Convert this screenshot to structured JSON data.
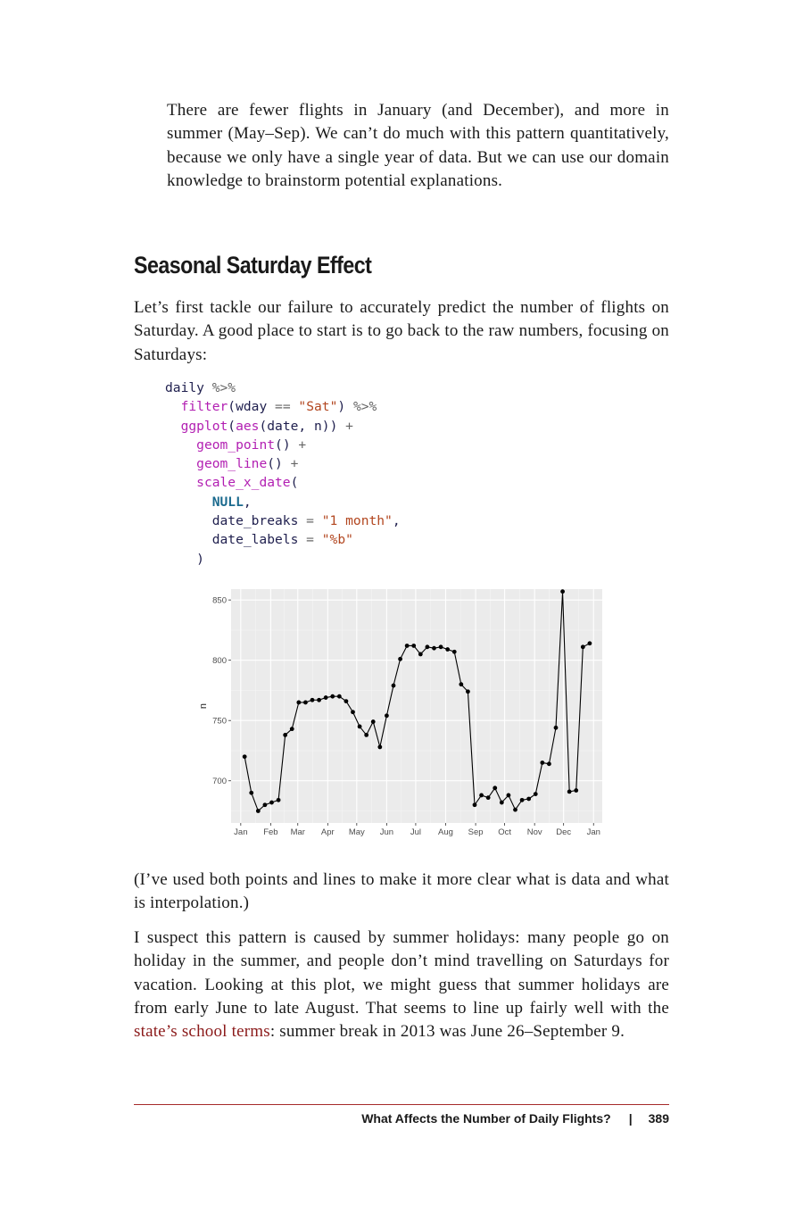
{
  "paragraphs": {
    "intro": "There are fewer flights in January (and December), and more in summer (May–Sep). We can’t do much with this pattern quantitatively, because we only have a single year of data. But we can use our domain knowledge to brainstorm potential explanations.",
    "lead": "Let’s first tackle our failure to accurately predict the number of flights on Saturday. A good place to start is to go back to the raw numbers, focusing on Saturdays:",
    "note": "(I’ve used both points and lines to make it more clear what is data and what is interpolation.)",
    "suspect_before": "I suspect this pattern is caused by summer holidays: many people go on holiday in the summer, and people don’t mind travelling on Saturdays for vacation. Looking at this plot, we might guess that summer holidays are from early June to late August. That seems to line up fairly well with the ",
    "suspect_link": "state’s school terms",
    "suspect_after": ": summer break in 2013 was June 26–September 9."
  },
  "section_title": "Seasonal Saturday Effect",
  "code_lines": [
    "daily %>%",
    "  filter(wday == \"Sat\") %>%",
    "  ggplot(aes(date, n)) +",
    "    geom_point() +",
    "    geom_line() +",
    "    scale_x_date(",
    "      NULL,",
    "      date_breaks = \"1 month\",",
    "      date_labels = \"%b\"",
    "    )"
  ],
  "chart_data": {
    "type": "line",
    "x_type": "date",
    "ylabel": "n",
    "xlabel": "",
    "y_ticks": [
      700,
      750,
      800,
      850
    ],
    "x_ticks": [
      "Jan",
      "Feb",
      "Mar",
      "Apr",
      "May",
      "Jun",
      "Jul",
      "Aug",
      "Sep",
      "Oct",
      "Nov",
      "Dec",
      "Jan"
    ],
    "x_tick_dates": [
      "2013-01-01",
      "2013-02-01",
      "2013-03-01",
      "2013-04-01",
      "2013-05-01",
      "2013-06-01",
      "2013-07-01",
      "2013-08-01",
      "2013-09-01",
      "2013-10-01",
      "2013-11-01",
      "2013-12-01",
      "2014-01-01"
    ],
    "xlim": [
      "2012-12-22",
      "2014-01-10"
    ],
    "ylim": [
      665,
      859
    ],
    "grid": true,
    "points": true,
    "series": [
      {
        "x": [
          "2013-01-05",
          "2013-01-12",
          "2013-01-19",
          "2013-01-26",
          "2013-02-02",
          "2013-02-09",
          "2013-02-16",
          "2013-02-23",
          "2013-03-02",
          "2013-03-09",
          "2013-03-16",
          "2013-03-23",
          "2013-03-30",
          "2013-04-06",
          "2013-04-13",
          "2013-04-20",
          "2013-04-27",
          "2013-05-04",
          "2013-05-11",
          "2013-05-18",
          "2013-05-25",
          "2013-06-01",
          "2013-06-08",
          "2013-06-15",
          "2013-06-22",
          "2013-06-29",
          "2013-07-06",
          "2013-07-13",
          "2013-07-20",
          "2013-07-27",
          "2013-08-03",
          "2013-08-10",
          "2013-08-17",
          "2013-08-24",
          "2013-08-31",
          "2013-09-07",
          "2013-09-14",
          "2013-09-21",
          "2013-09-28",
          "2013-10-05",
          "2013-10-12",
          "2013-10-19",
          "2013-10-26",
          "2013-11-02",
          "2013-11-09",
          "2013-11-16",
          "2013-11-23",
          "2013-11-30",
          "2013-12-07",
          "2013-12-14",
          "2013-12-21",
          "2013-12-28"
        ],
        "y": [
          720,
          690,
          675,
          680,
          682,
          684,
          738,
          743,
          765,
          765,
          767,
          767,
          769,
          770,
          770,
          766,
          757,
          745,
          738,
          749,
          728,
          754,
          779,
          801,
          812,
          812,
          805,
          811,
          810,
          811,
          809,
          807,
          780,
          774,
          680,
          688,
          686,
          694,
          682,
          688,
          676,
          684,
          685,
          689,
          715,
          714,
          744,
          857,
          691,
          692,
          811,
          814
        ]
      }
    ]
  },
  "footer": {
    "running_title": "What Affects the Number of Daily Flights?",
    "separator": "|",
    "page_number": "389"
  },
  "colors": {
    "panel": "#ebebeb",
    "grid_major": "#ffffff",
    "line": "#000000",
    "link": "#8b1a1a",
    "rule": "#a52a2a"
  }
}
